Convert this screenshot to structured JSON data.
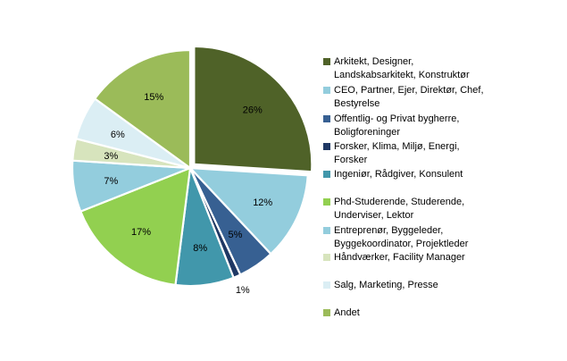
{
  "chart_data": {
    "type": "pie",
    "title": "",
    "slices": [
      {
        "label": "Arkitekt, Designer, Landskabsarkitekt, Konstruktør",
        "value": 26,
        "value_label": "26%",
        "color": "#4f6228",
        "exploded": true
      },
      {
        "label": "CEO, Partner, Ejer, Direktør, Chef, Bestyrelse",
        "value": 12,
        "value_label": "12%",
        "color": "#93cddd",
        "exploded": false
      },
      {
        "label": "Offentlig- og Privat bygherre, Boligforeninger",
        "value": 5,
        "value_label": "5%",
        "color": "#376092",
        "exploded": false
      },
      {
        "label": "Forsker, Klima, Miljø, Energi, Forsker",
        "value": 1,
        "value_label": "1%",
        "color": "#1f3864",
        "exploded": false
      },
      {
        "label": "Ingeniør, Rådgiver, Konsulent",
        "value": 8,
        "value_label": "8%",
        "color": "#4197ab",
        "exploded": false
      },
      {
        "label": "Phd-Studerende, Studerende, Underviser, Lektor",
        "value": 17,
        "value_label": "17%",
        "color": "#92d050",
        "exploded": false
      },
      {
        "label": "Entreprenør, Byggeleder, Byggekoordinator, Projektleder",
        "value": 7,
        "value_label": "7%",
        "color": "#93cddd",
        "exploded": false
      },
      {
        "label": "Håndværker, Facility Manager",
        "value": 3,
        "value_label": "3%",
        "color": "#d7e4bd",
        "exploded": false
      },
      {
        "label": "Salg, Marketing, Presse",
        "value": 6,
        "value_label": "6%",
        "color": "#dbeef4",
        "exploded": false
      },
      {
        "label": "Andet",
        "value": 15,
        "value_label": "15%",
        "color": "#9bbb59",
        "exploded": false
      }
    ],
    "legend": {
      "position": "right",
      "items": [
        {
          "lines": [
            "Arkitekt, Designer,",
            "Landskabsarkitekt, Konstruktør"
          ],
          "color": "#4f6228"
        },
        {
          "lines": [
            "CEO, Partner, Ejer, Direktør, Chef,",
            "Bestyrelse"
          ],
          "color": "#93cddd"
        },
        {
          "lines": [
            "Offentlig- og Privat bygherre,",
            "Boligforeninger"
          ],
          "color": "#376092"
        },
        {
          "lines": [
            "Forsker, Klima, Miljø, Energi,",
            "Forsker"
          ],
          "color": "#1f3864"
        },
        {
          "lines": [
            "Ingeniør, Rådgiver, Konsulent"
          ],
          "color": "#4197ab"
        },
        {
          "lines": [
            "Phd-Studerende, Studerende,",
            "Underviser, Lektor"
          ],
          "color": "#92d050"
        },
        {
          "lines": [
            "Entreprenør, Byggeleder,",
            "Byggekoordinator, Projektleder"
          ],
          "color": "#93cddd"
        },
        {
          "lines": [
            "Håndværker, Facility Manager"
          ],
          "color": "#d7e4bd"
        },
        {
          "lines": [
            "Salg, Marketing, Presse"
          ],
          "color": "#dbeef4"
        },
        {
          "lines": [
            "Andet"
          ],
          "color": "#9bbb59"
        }
      ]
    }
  }
}
